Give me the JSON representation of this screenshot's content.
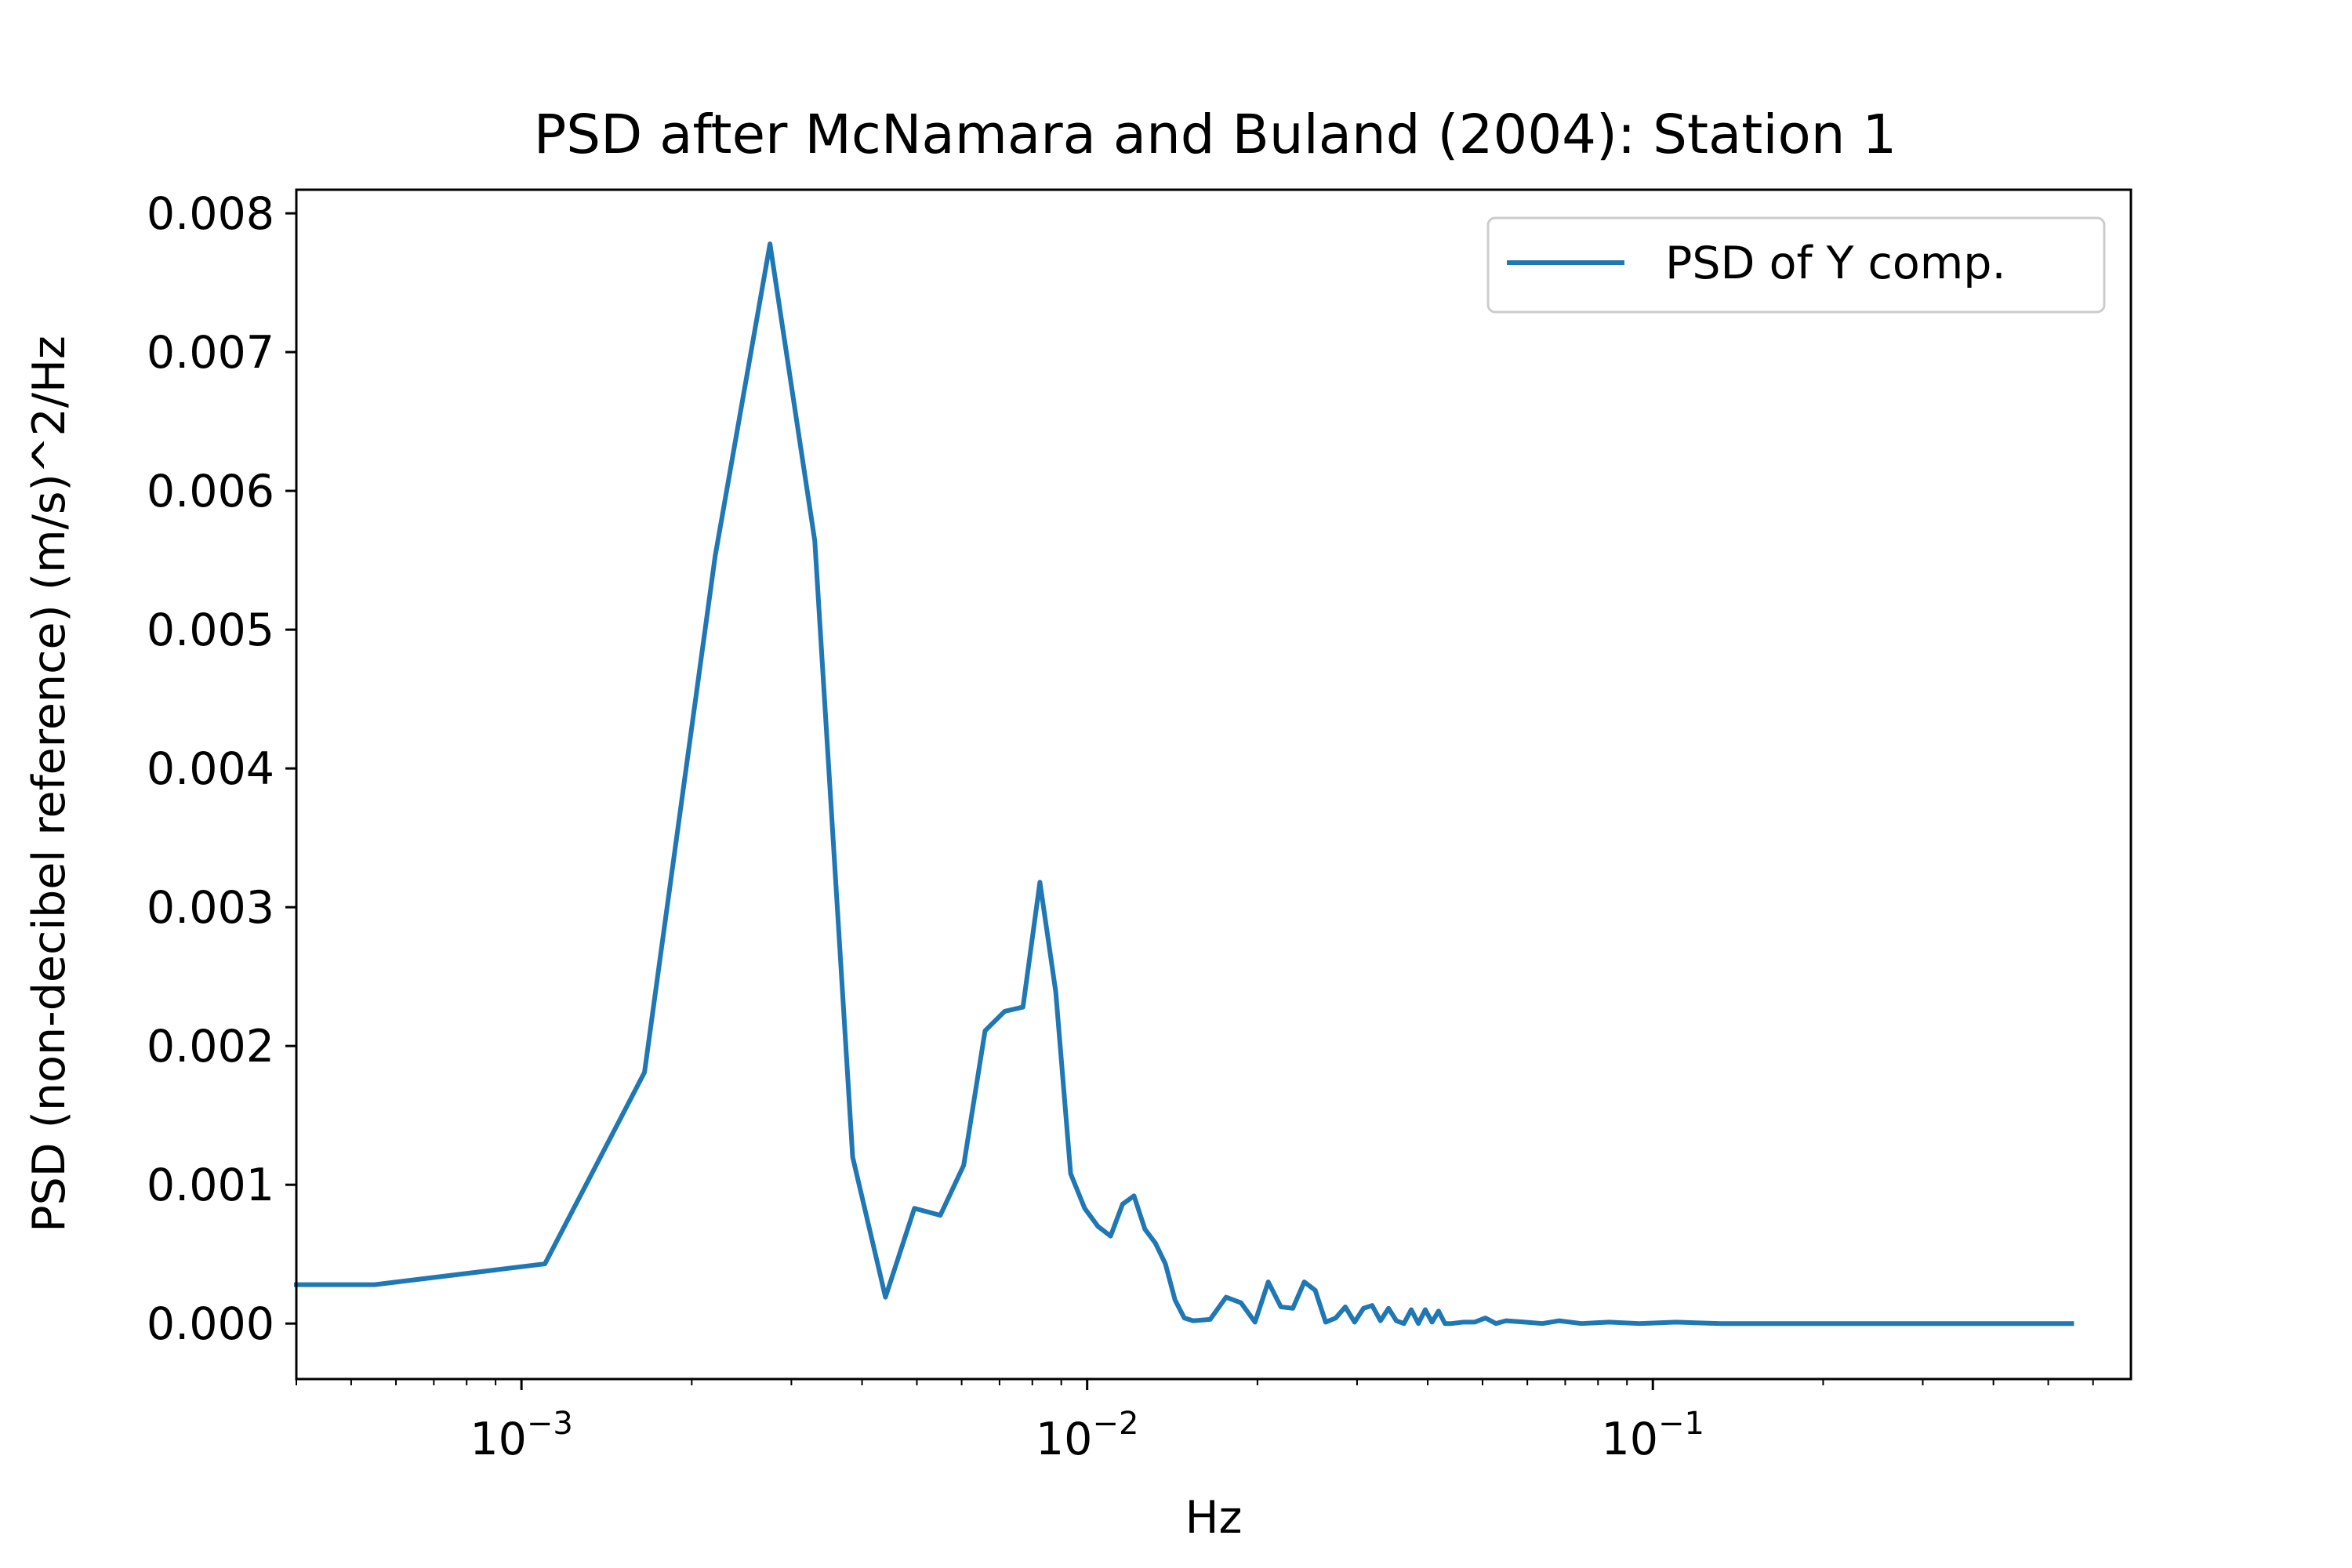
{
  "chart_data": {
    "type": "line",
    "title": "PSD after McNamara and Buland (2004): Station 1",
    "xlabel": "Hz",
    "ylabel": "PSD (non-decibel reference) (m/s)^2/Hz",
    "x_scale": "log",
    "xlim": [
      0.0004,
      0.7
    ],
    "ylim": [
      -0.0004,
      0.00817
    ],
    "grid": false,
    "legend_position": "upper right",
    "x_ticks": [
      {
        "value": 0.001,
        "base": "10",
        "exponent": "−3"
      },
      {
        "value": 0.01,
        "base": "10",
        "exponent": "−2"
      },
      {
        "value": 0.1,
        "base": "10",
        "exponent": "−1"
      }
    ],
    "y_ticks": [
      {
        "value": 0.0,
        "label": "0.000"
      },
      {
        "value": 0.001,
        "label": "0.001"
      },
      {
        "value": 0.002,
        "label": "0.002"
      },
      {
        "value": 0.003,
        "label": "0.003"
      },
      {
        "value": 0.004,
        "label": "0.004"
      },
      {
        "value": 0.005,
        "label": "0.005"
      },
      {
        "value": 0.006,
        "label": "0.006"
      },
      {
        "value": 0.007,
        "label": "0.007"
      },
      {
        "value": 0.008,
        "label": "0.008"
      }
    ],
    "series": [
      {
        "name": "PSD of Y comp.",
        "color": "#1f77b4",
        "x": [
          0.0004,
          0.00055,
          0.0011,
          0.00165,
          0.0022,
          0.00275,
          0.0033,
          0.00385,
          0.0044,
          0.00495,
          0.0055,
          0.00605,
          0.0066,
          0.00715,
          0.0077,
          0.00825,
          0.0088,
          0.00935,
          0.0099,
          0.01045,
          0.011,
          0.01155,
          0.0121,
          0.01265,
          0.0132,
          0.01375,
          0.0143,
          0.01485,
          0.0154,
          0.0165,
          0.0176,
          0.0187,
          0.0198,
          0.0209,
          0.022,
          0.0231,
          0.0242,
          0.0253,
          0.0264,
          0.0275,
          0.0286,
          0.0297,
          0.0308,
          0.0319,
          0.033,
          0.0341,
          0.0352,
          0.0363,
          0.0374,
          0.0385,
          0.0396,
          0.0407,
          0.0418,
          0.0429,
          0.044,
          0.0462,
          0.0484,
          0.0506,
          0.0528,
          0.055,
          0.0594,
          0.0638,
          0.0682,
          0.0748,
          0.0836,
          0.0946,
          0.11,
          0.132,
          0.165,
          0.22,
          0.33,
          0.44,
          0.55
        ],
        "y": [
          0.00028,
          0.00028,
          0.00043,
          0.00181,
          0.00553,
          0.00778,
          0.00564,
          0.0012,
          0.00019,
          0.00083,
          0.00078,
          0.00114,
          0.00211,
          0.00225,
          0.00228,
          0.00318,
          0.00239,
          0.00108,
          0.00083,
          0.0007,
          0.00063,
          0.00086,
          0.00092,
          0.00068,
          0.00058,
          0.00043,
          0.00017,
          4e-05,
          2e-05,
          3e-05,
          0.00019,
          0.00015,
          1e-05,
          0.0003,
          0.00012,
          0.00011,
          0.0003,
          0.00024,
          1e-05,
          4e-05,
          0.00012,
          1e-05,
          0.00011,
          0.00013,
          2e-05,
          0.00011,
          2e-05,
          0.0,
          0.0001,
          0.0,
          0.0001,
          1e-05,
          9e-05,
          0.0,
          0.0,
          1e-05,
          1e-05,
          4e-05,
          0.0,
          2e-05,
          1e-05,
          0.0,
          2e-05,
          0.0,
          1e-05,
          0.0,
          1e-05,
          0.0,
          0.0,
          0.0,
          0.0,
          0.0,
          0.0
        ]
      }
    ]
  }
}
